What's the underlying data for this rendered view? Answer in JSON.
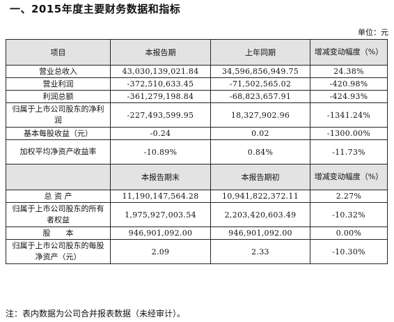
{
  "title": "一、2015年度主要财务数据和指标",
  "unit": "单位：元",
  "header1": [
    "项目",
    "本报告期",
    "上年同期",
    "增减变动幅度（%）"
  ],
  "rows1": [
    [
      "营业总收入",
      "43,030,139,021.84",
      "34,596,856,949.75",
      "24.38%"
    ],
    [
      "营业利润",
      "-372,510,633.45",
      "-71,502,565.02",
      "-420.98%"
    ],
    [
      "利润总额",
      "-361,279,198.84",
      "-68,823,657.91",
      "-424.93%"
    ],
    [
      "归属于上市公司股东的净利润",
      "-227,493,599.95",
      "18,327,902.96",
      "-1341.24%"
    ],
    [
      "基本每股收益（元）",
      "-0.24",
      "0.02",
      "-1300.00%"
    ],
    [
      "加权平均净资产收益率",
      "-10.89%",
      "0.84%",
      "-11.73%"
    ]
  ],
  "header2": [
    "",
    "本报告期末",
    "本报告期初",
    "增减变动幅度（%）"
  ],
  "rows2": [
    [
      "总 资 产",
      "11,190,147,564.28",
      "10,941,822,372.11",
      "2.27%"
    ],
    [
      "归属于上市公司股东的所有者权益",
      "1,975,927,003.54",
      "2,203,420,603.49",
      "-10.32%"
    ],
    [
      "股　　本",
      "946,901,092.00",
      "946,901,092.00",
      "0.00%"
    ],
    [
      "归属于上市公司股东的每股净资产（元）",
      "2.09",
      "2.33",
      "-10.30%"
    ]
  ],
  "note": "注：表内数据为公司合并报表数据（未经审计）。"
}
